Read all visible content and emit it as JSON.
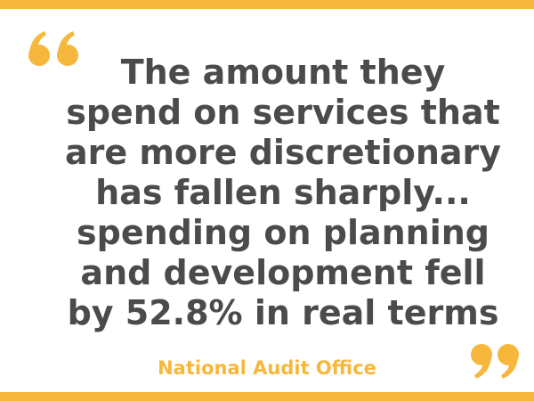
{
  "quote": {
    "lines": [
      "The amount they",
      "spend on services that",
      "are more discretionary",
      "has fallen sharply...",
      "spending on planning",
      "and development fell",
      "by 52.8% in real terms"
    ]
  },
  "attribution": "National Audit Office"
}
